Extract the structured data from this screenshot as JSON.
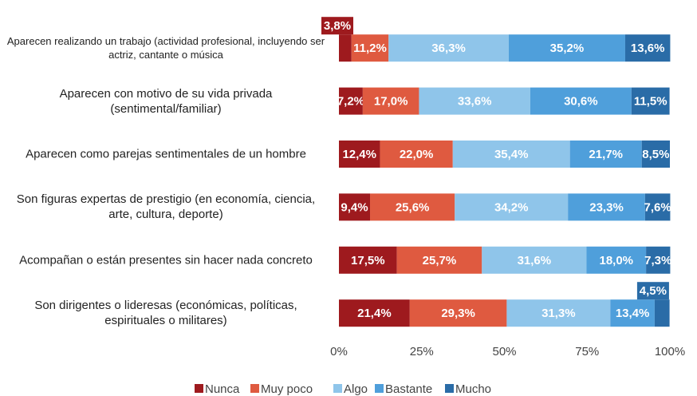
{
  "chart_data": {
    "type": "stacked-barh",
    "categories": [
      "Aparecen realizando un trabajo (actividad profesional, incluyendo ser actriz, cantante o música",
      "Aparecen con motivo de su vida privada (sentimental/familiar)",
      "Aparecen como parejas sentimentales de un hombre",
      "Son figuras expertas de prestigio (en economía, ciencia, arte, cultura, deporte)",
      "Acompañan o están presentes sin hacer nada concreto",
      "Son dirigentes o lideresas (económicas, políticas, espirituales o militares)"
    ],
    "series": [
      {
        "name": "Nunca",
        "color": "#9e1a1e",
        "values": [
          3.8,
          7.2,
          12.4,
          9.4,
          17.5,
          21.4
        ],
        "value_labels": [
          "3,8%",
          "7,2%",
          "12,4%",
          "9,4%",
          "17,5%",
          "21,4%"
        ]
      },
      {
        "name": "Muy poco",
        "color": "#df5a40",
        "values": [
          11.2,
          17.0,
          22.0,
          25.6,
          25.7,
          29.3
        ],
        "value_labels": [
          "11,2%",
          "17,0%",
          "22,0%",
          "25,6%",
          "25,7%",
          "29,3%"
        ]
      },
      {
        "name": "Algo",
        "color": "#8fc5ea",
        "values": [
          36.3,
          33.6,
          35.4,
          34.2,
          31.6,
          31.3
        ],
        "value_labels": [
          "36,3%",
          "33,6%",
          "35,4%",
          "34,2%",
          "31,6%",
          "31,3%"
        ]
      },
      {
        "name": "Bastante",
        "color": "#4f9fdb",
        "values": [
          35.2,
          30.6,
          21.7,
          23.3,
          18.0,
          13.4
        ],
        "value_labels": [
          "35,2%",
          "30,6%",
          "21,7%",
          "23,3%",
          "18,0%",
          "13,4%"
        ]
      },
      {
        "name": "Mucho",
        "color": "#2a6ca7",
        "values": [
          13.6,
          11.5,
          8.5,
          7.6,
          7.3,
          4.5
        ],
        "value_labels": [
          "13,6%",
          "11,5%",
          "8,5%",
          "7,6%",
          "7,3%",
          "4,5%"
        ]
      }
    ],
    "xlim": [
      0,
      100
    ],
    "xticks": [
      {
        "value": 0,
        "label": "0%"
      },
      {
        "value": 25,
        "label": "25%"
      },
      {
        "value": 50,
        "label": "50%"
      },
      {
        "value": 75,
        "label": "75%"
      },
      {
        "value": 100,
        "label": "100%"
      }
    ],
    "legend": "bottom"
  }
}
